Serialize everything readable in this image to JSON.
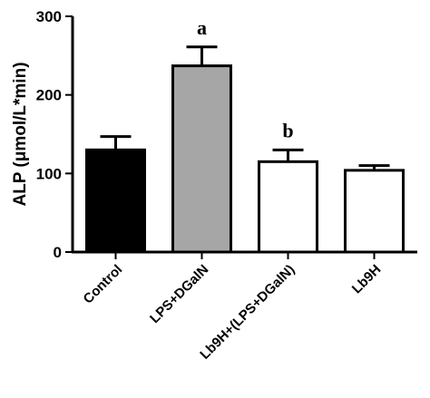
{
  "chart_data": {
    "type": "bar",
    "title": "",
    "xlabel": "",
    "ylabel": "ALP (μmol/L*min)",
    "ylim": [
      0,
      300
    ],
    "yticks": [
      0,
      100,
      200,
      300
    ],
    "categories": [
      "Control",
      "LPS+DGalN",
      "Lb9H+(LPS+DGalN)",
      "Lb9H"
    ],
    "values": [
      130,
      237,
      115,
      104
    ],
    "errors": [
      17,
      24,
      15,
      6
    ],
    "bar_colors": [
      "#000000",
      "#a6a6a6",
      "#ffffff",
      "#ffffff"
    ],
    "significance_labels": [
      "",
      "a",
      "b",
      ""
    ],
    "grid": false
  }
}
